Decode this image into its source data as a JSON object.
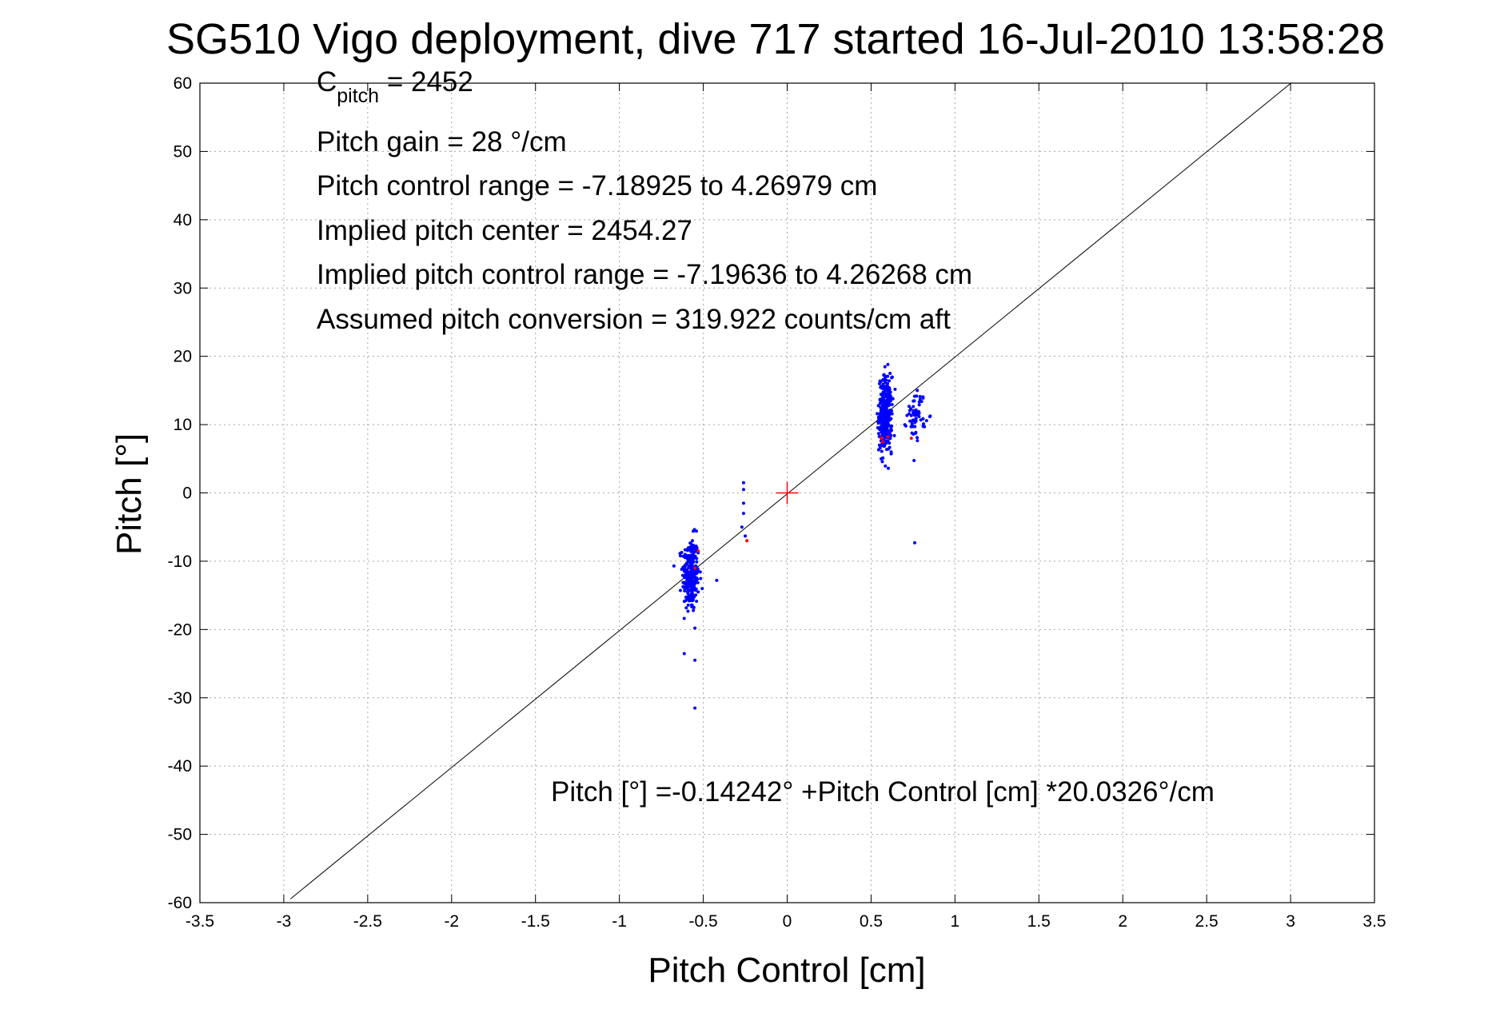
{
  "chart_data": {
    "type": "scatter",
    "title": "SG510 Vigo deployment, dive 717 started 16-Jul-2010 13:58:28",
    "xlabel": "Pitch Control [cm]",
    "ylabel": "Pitch [°]",
    "xlim": [
      -3.5,
      3.5
    ],
    "ylim": [
      -60,
      60
    ],
    "x_ticks": [
      -3.5,
      -3,
      -2.5,
      -2,
      -1.5,
      -1,
      -0.5,
      0,
      0.5,
      1,
      1.5,
      2,
      2.5,
      3,
      3.5
    ],
    "x_tick_labels": [
      "-3.5",
      "-3",
      "-2.5",
      "-2",
      "-1.5",
      "-1",
      "-0.5",
      "0",
      "0.5",
      "1",
      "1.5",
      "2",
      "2.5",
      "3",
      "3.5"
    ],
    "y_ticks": [
      60,
      50,
      40,
      30,
      20,
      10,
      0,
      -10,
      -20,
      -30,
      -40,
      -50,
      -60
    ],
    "y_tick_labels": [
      "60",
      "50",
      "40",
      "30",
      "20",
      "10",
      "0",
      "-10",
      "-20",
      "-30",
      "-40",
      "-50",
      "-60"
    ],
    "grid": true,
    "annotations": {
      "c_pitch_main": "C",
      "c_pitch_sub": "pitch",
      "c_pitch_value": " = 2452",
      "lines": [
        "Pitch gain = 28 °/cm",
        "Pitch control range = -7.18925 to 4.26979 cm",
        "Implied pitch center = 2454.27",
        "Implied pitch control range = -7.19636 to 4.26268 cm",
        "Assumed pitch conversion = 319.922 counts/cm aft"
      ],
      "fit_equation": "Pitch [°] =-0.14242° +Pitch Control [cm] *20.0326°/cm"
    },
    "fit_line": {
      "intercept": -0.14242,
      "slope": 20.0326,
      "x_range": [
        -2.96,
        3.0
      ]
    },
    "center_marker": {
      "x": 0,
      "y": 0
    },
    "series": [
      {
        "color": "#0000ff",
        "clusters": [
          {
            "x_center": -0.575,
            "x_spread": 0.045,
            "y_center": -12,
            "y_spread": 5.5,
            "count": 260
          },
          {
            "x_center": 0.585,
            "x_spread": 0.035,
            "y_center": 11.5,
            "y_spread": 5.5,
            "count": 320
          },
          {
            "x_center": 0.77,
            "x_spread": 0.05,
            "y_center": 11.5,
            "y_spread": 3.5,
            "count": 60
          }
        ],
        "points": [
          [
            -0.26,
            1.5
          ],
          [
            -0.26,
            0.5
          ],
          [
            -0.26,
            -1.5
          ],
          [
            -0.26,
            -3
          ],
          [
            -0.27,
            -5
          ],
          [
            -0.25,
            -6.3
          ],
          [
            -0.42,
            -12.8
          ],
          [
            -0.55,
            -19.8
          ],
          [
            -0.55,
            -24.5
          ],
          [
            -0.55,
            -31.5
          ],
          [
            0.76,
            -7.3
          ],
          [
            0.56,
            5
          ],
          [
            0.6,
            18.8
          ],
          [
            0.55,
            7
          ],
          [
            0.62,
            6
          ]
        ]
      },
      {
        "color": "#ff0000",
        "points": [
          [
            -0.24,
            -7
          ],
          [
            -0.53,
            -8.5
          ],
          [
            -0.55,
            -11
          ],
          [
            0.56,
            8
          ],
          [
            0.6,
            8.2
          ],
          [
            0.74,
            8
          ],
          [
            0.57,
            7.5
          ]
        ]
      }
    ]
  }
}
